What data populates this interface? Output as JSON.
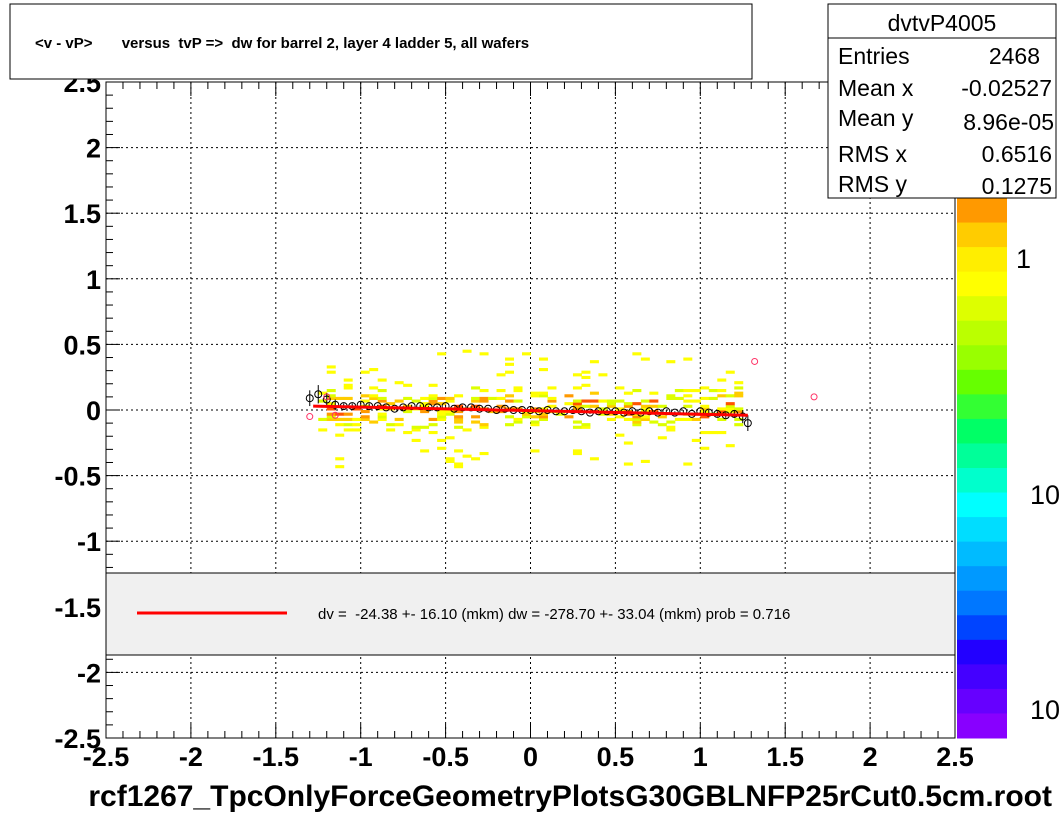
{
  "chart_data": {
    "type": "scatter",
    "title": "<v - vP>       versus  tvP =>  dw for barrel 2, layer 4 ladder 5, all wafers",
    "xlabel": "",
    "ylabel": "",
    "xlim": [
      -2.5,
      2.5
    ],
    "ylim": [
      -2.5,
      2.5
    ],
    "x_ticks": [
      "-2.5",
      "-2",
      "-1.5",
      "-1",
      "-0.5",
      "0",
      "0.5",
      "1",
      "1.5",
      "2",
      "2.5"
    ],
    "y_ticks": [
      "2.5",
      "2",
      "1.5",
      "1",
      "0.5",
      "0",
      "-0.5",
      "-1",
      "-1.5",
      "-2",
      "-2.5"
    ],
    "grid": true,
    "stats": {
      "name": "dvtvP4005",
      "rows": [
        {
          "label": "Entries",
          "value": "2468"
        },
        {
          "label": "Mean x",
          "value": "-0.02527"
        },
        {
          "label": "Mean y",
          "value": "8.96e-05"
        },
        {
          "label": "RMS x",
          "value": "0.6516"
        },
        {
          "label": "RMS y",
          "value": "0.1275"
        }
      ]
    },
    "z_axis_labels": [
      "1",
      "10",
      "10"
    ],
    "legend_text": "dv =  -24.38 +- 16.10 (mkm) dw = -278.70 +- 33.04 (mkm) prob = 0.716",
    "fit_line": {
      "x": [
        -1.28,
        1.28
      ],
      "y": [
        0.03,
        -0.04
      ],
      "color": "#ff0000"
    },
    "profile_points": {
      "x": [
        -1.3,
        -1.25,
        -1.2,
        -1.15,
        -1.1,
        -1.05,
        -1.0,
        -0.95,
        -0.9,
        -0.85,
        -0.8,
        -0.75,
        -0.7,
        -0.65,
        -0.6,
        -0.55,
        -0.5,
        -0.45,
        -0.4,
        -0.35,
        -0.3,
        -0.25,
        -0.2,
        -0.15,
        -0.1,
        -0.05,
        0.0,
        0.05,
        0.1,
        0.15,
        0.2,
        0.25,
        0.3,
        0.35,
        0.4,
        0.45,
        0.5,
        0.55,
        0.6,
        0.65,
        0.7,
        0.75,
        0.8,
        0.85,
        0.9,
        0.95,
        1.0,
        1.05,
        1.1,
        1.15,
        1.2,
        1.25,
        1.28
      ],
      "y": [
        0.09,
        0.12,
        0.08,
        0.04,
        0.03,
        0.03,
        0.04,
        0.03,
        0.03,
        0.02,
        0.01,
        0.02,
        0.03,
        0.03,
        0.02,
        0.02,
        0.03,
        0.01,
        0.02,
        0.02,
        0.01,
        0.01,
        0.0,
        0.01,
        0.0,
        0.0,
        0.0,
        -0.01,
        0.0,
        -0.01,
        -0.01,
        0.0,
        -0.01,
        -0.02,
        -0.01,
        -0.01,
        -0.01,
        -0.02,
        -0.01,
        -0.02,
        -0.01,
        -0.02,
        -0.01,
        -0.02,
        -0.01,
        -0.03,
        -0.01,
        -0.02,
        -0.03,
        -0.04,
        -0.03,
        -0.05,
        -0.1
      ],
      "y_err": [
        0.06,
        0.07,
        0.05,
        0.04,
        0.02,
        0.02,
        0.02,
        0.02,
        0.01,
        0.01,
        0.01,
        0.01,
        0.01,
        0.01,
        0.01,
        0.01,
        0.01,
        0.01,
        0.01,
        0.01,
        0.01,
        0.01,
        0.01,
        0.01,
        0.01,
        0.01,
        0.01,
        0.01,
        0.01,
        0.01,
        0.01,
        0.01,
        0.01,
        0.01,
        0.01,
        0.01,
        0.01,
        0.01,
        0.01,
        0.01,
        0.01,
        0.01,
        0.01,
        0.01,
        0.01,
        0.01,
        0.01,
        0.02,
        0.02,
        0.02,
        0.03,
        0.05,
        0.06
      ],
      "outliers": [
        {
          "x": 1.32,
          "y": 0.37
        },
        {
          "x": 1.67,
          "y": 0.1
        },
        {
          "x": -1.3,
          "y": -0.05
        },
        {
          "x": -1.15,
          "y": -0.04
        },
        {
          "x": -1.2,
          "y": 0.1
        }
      ]
    }
  },
  "footer": {
    "filename": "rcf1267_TpcOnlyForceGeometryPlotsG30GBLNFP25rCut0.5cm.root"
  }
}
